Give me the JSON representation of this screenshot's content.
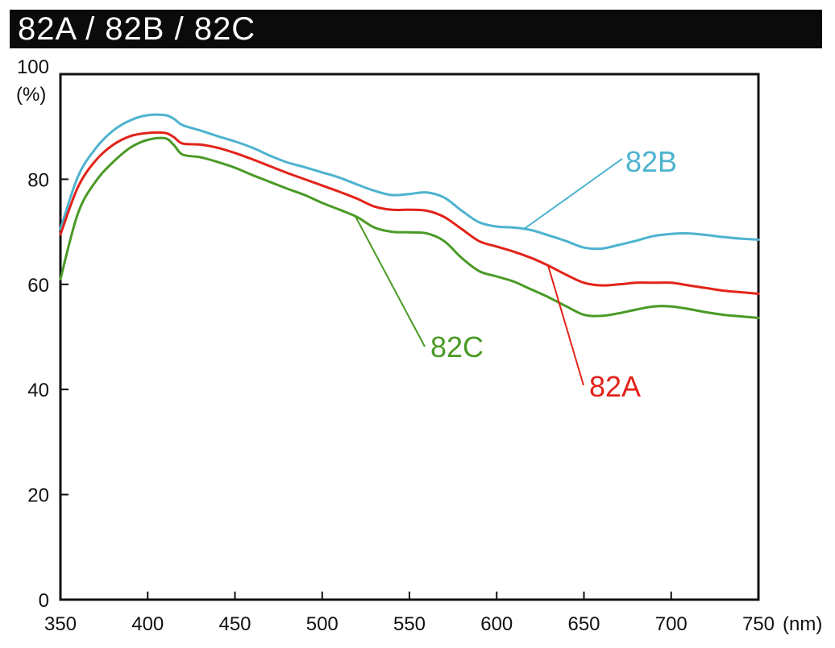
{
  "header": {
    "title": "82A / 82B / 82C"
  },
  "chart_data": {
    "type": "line",
    "title": "82A / 82B / 82C",
    "xlabel": "",
    "ylabel": "",
    "x_unit": "(nm)",
    "y_unit": "(%)",
    "xlim": [
      350,
      750
    ],
    "ylim": [
      0,
      100
    ],
    "x_ticks": [
      "350",
      "400",
      "450",
      "500",
      "550",
      "600",
      "650",
      "700",
      "750"
    ],
    "y_ticks": [
      "0",
      "20",
      "40",
      "60",
      "80",
      "100"
    ],
    "grid": false,
    "x": [
      350,
      360,
      370,
      380,
      390,
      400,
      410,
      415,
      420,
      430,
      440,
      450,
      460,
      470,
      480,
      490,
      500,
      510,
      520,
      530,
      540,
      550,
      560,
      570,
      580,
      590,
      600,
      610,
      620,
      630,
      640,
      650,
      660,
      670,
      680,
      690,
      700,
      710,
      720,
      730,
      740,
      750
    ],
    "series": [
      {
        "name": "82A",
        "color": "#e2231a",
        "values": [
          69.5,
          78.5,
          83.5,
          86.5,
          88.2,
          88.8,
          88.8,
          88.0,
          86.8,
          86.6,
          86.0,
          85.0,
          83.8,
          82.5,
          81.2,
          80.0,
          78.8,
          77.6,
          76.3,
          74.8,
          74.2,
          74.2,
          74.0,
          72.8,
          70.5,
          68.2,
          67.2,
          66.2,
          65.0,
          63.5,
          61.8,
          60.3,
          59.8,
          60.0,
          60.3,
          60.3,
          60.3,
          59.8,
          59.3,
          58.8,
          58.5,
          58.2
        ]
      },
      {
        "name": "82B",
        "color": "#4db3cf",
        "values": [
          70.5,
          80.5,
          85.8,
          89.2,
          91.2,
          92.2,
          92.2,
          91.5,
          90.3,
          89.3,
          88.2,
          87.2,
          86.0,
          84.5,
          83.2,
          82.3,
          81.3,
          80.3,
          79.0,
          77.8,
          77.0,
          77.2,
          77.5,
          76.5,
          74.0,
          71.8,
          71.0,
          70.8,
          70.3,
          69.3,
          68.2,
          67.0,
          66.8,
          67.5,
          68.3,
          69.2,
          69.6,
          69.7,
          69.4,
          69.0,
          68.7,
          68.5
        ]
      },
      {
        "name": "82C",
        "color": "#4a9a26",
        "values": [
          61.0,
          73.5,
          79.5,
          83.2,
          86.0,
          87.5,
          87.8,
          86.5,
          84.7,
          84.2,
          83.3,
          82.2,
          80.8,
          79.5,
          78.2,
          77.0,
          75.5,
          74.2,
          72.8,
          70.8,
          70.0,
          69.9,
          69.7,
          68.2,
          65.0,
          62.5,
          61.5,
          60.5,
          59.0,
          57.5,
          55.8,
          54.2,
          54.0,
          54.5,
          55.2,
          55.8,
          55.8,
          55.3,
          54.7,
          54.2,
          53.9,
          53.6
        ]
      }
    ]
  }
}
